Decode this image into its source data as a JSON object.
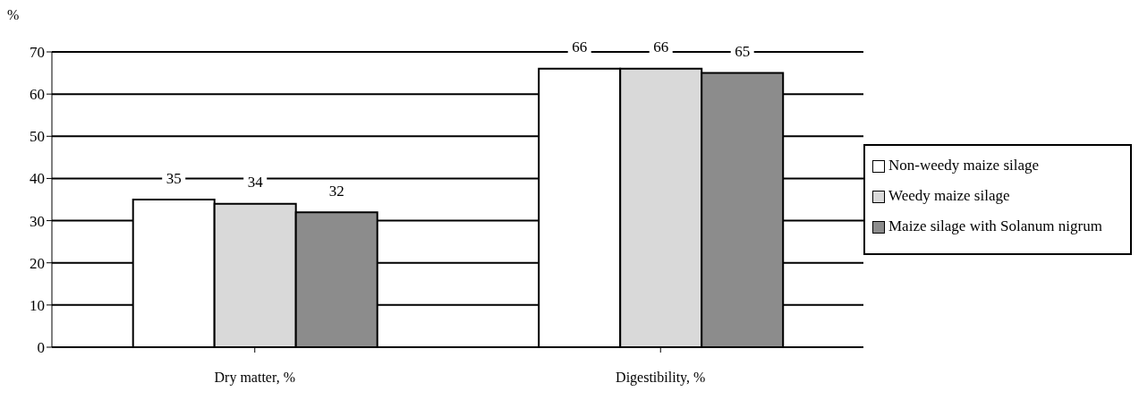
{
  "chart_data": {
    "type": "bar",
    "ylabel": "%",
    "categories": [
      "Dry matter, %",
      "Digestibility, %"
    ],
    "series": [
      {
        "name": "Non-weedy maize silage",
        "color": "#ffffff",
        "values": [
          35,
          66
        ]
      },
      {
        "name": "Weedy maize silage",
        "color": "#d9d9d9",
        "values": [
          34,
          66
        ]
      },
      {
        "name": "Maize silage with Solanum nigrum",
        "color": "#8c8c8c",
        "values": [
          32,
          65
        ]
      }
    ],
    "ylim": [
      0,
      70
    ],
    "yticks": [
      0,
      10,
      20,
      30,
      40,
      50,
      60,
      70
    ],
    "grid": "y",
    "legend": "right",
    "data_labels": true
  }
}
